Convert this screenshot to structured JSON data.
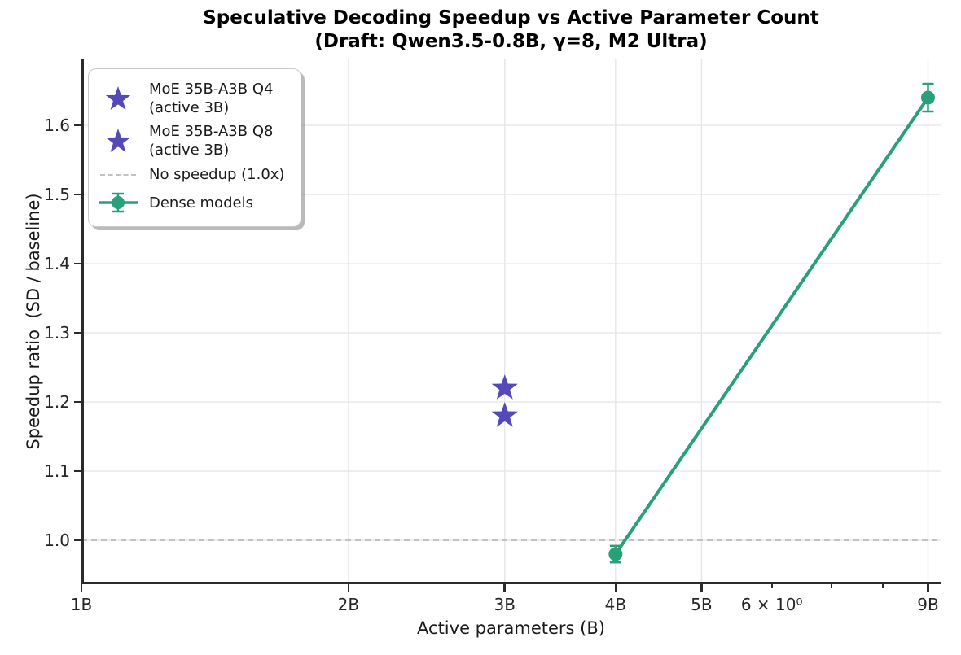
{
  "title": {
    "line1": "Speculative Decoding Speedup vs Active Parameter Count",
    "line2": "(Draft: Qwen3.5-0.8B, γ=8, M2 Ultra)"
  },
  "axes": {
    "x_label": "Active parameters (B)",
    "y_label": "Speedup ratio  (SD / baseline)"
  },
  "colors": {
    "purple": "#5449b8",
    "green": "#2aa078",
    "grid": "#e7e7e7",
    "dashed": "#c2c2c2",
    "spine": "#2b2b2b",
    "text": "#1a1a1a"
  },
  "chart_data": {
    "type": "scatter",
    "x_scale": "log",
    "xlim": [
      1.0,
      9.3
    ],
    "ylim": [
      0.9365,
      1.6965
    ],
    "grid": true,
    "legend_position": "upper left",
    "title": "Speculative Decoding Speedup vs Active Parameter Count (Draft: Qwen3.5-0.8B, γ=8, M2 Ultra)",
    "xlabel": "Active parameters (B)",
    "ylabel": "Speedup ratio  (SD / baseline)",
    "x_major_ticks": [
      {
        "value": 1,
        "label": "1B"
      },
      {
        "value": 2,
        "label": "2B"
      },
      {
        "value": 3,
        "label": "3B"
      },
      {
        "value": 4,
        "label": "4B"
      },
      {
        "value": 5,
        "label": "5B"
      },
      {
        "value": 9,
        "label": "9B"
      }
    ],
    "x_minor_ticks": [
      {
        "value": 6,
        "label": "6 × 10⁰"
      },
      {
        "value": 7,
        "label": ""
      },
      {
        "value": 8,
        "label": ""
      }
    ],
    "y_ticks": [
      {
        "value": 1.0,
        "label": "1.0"
      },
      {
        "value": 1.1,
        "label": "1.1"
      },
      {
        "value": 1.2,
        "label": "1.2"
      },
      {
        "value": 1.3,
        "label": "1.3"
      },
      {
        "value": 1.4,
        "label": "1.4"
      },
      {
        "value": 1.5,
        "label": "1.5"
      },
      {
        "value": 1.6,
        "label": "1.6"
      }
    ],
    "reference_line": {
      "y": 1.0,
      "style": "dashed",
      "color_key": "dashed",
      "label": "No speedup (1.0x)"
    },
    "series": [
      {
        "name": "MoE 35B-A3B Q4 (active 3B)",
        "type": "scatter",
        "marker": "star",
        "color_key": "purple",
        "points": [
          {
            "x": 3,
            "y": 1.22
          }
        ]
      },
      {
        "name": "MoE 35B-A3B Q8 (active 3B)",
        "type": "scatter",
        "marker": "star",
        "color_key": "purple",
        "points": [
          {
            "x": 3,
            "y": 1.18
          }
        ]
      },
      {
        "name": "Dense models",
        "type": "line_errorbar",
        "marker": "circle",
        "color_key": "green",
        "points": [
          {
            "x": 4,
            "y": 0.98,
            "yerr": 0.012
          },
          {
            "x": 9,
            "y": 1.64,
            "yerr": 0.02
          }
        ]
      }
    ]
  },
  "legend": {
    "items": [
      {
        "icon": "star",
        "line1": "MoE 35B-A3B Q4",
        "line2": "(active 3B)"
      },
      {
        "icon": "star",
        "line1": "MoE 35B-A3B Q8",
        "line2": "(active 3B)"
      },
      {
        "icon": "dashed-line",
        "line1": "No speedup (1.0x)",
        "line2": ""
      },
      {
        "icon": "errorbar",
        "line1": "Dense models",
        "line2": ""
      }
    ]
  }
}
